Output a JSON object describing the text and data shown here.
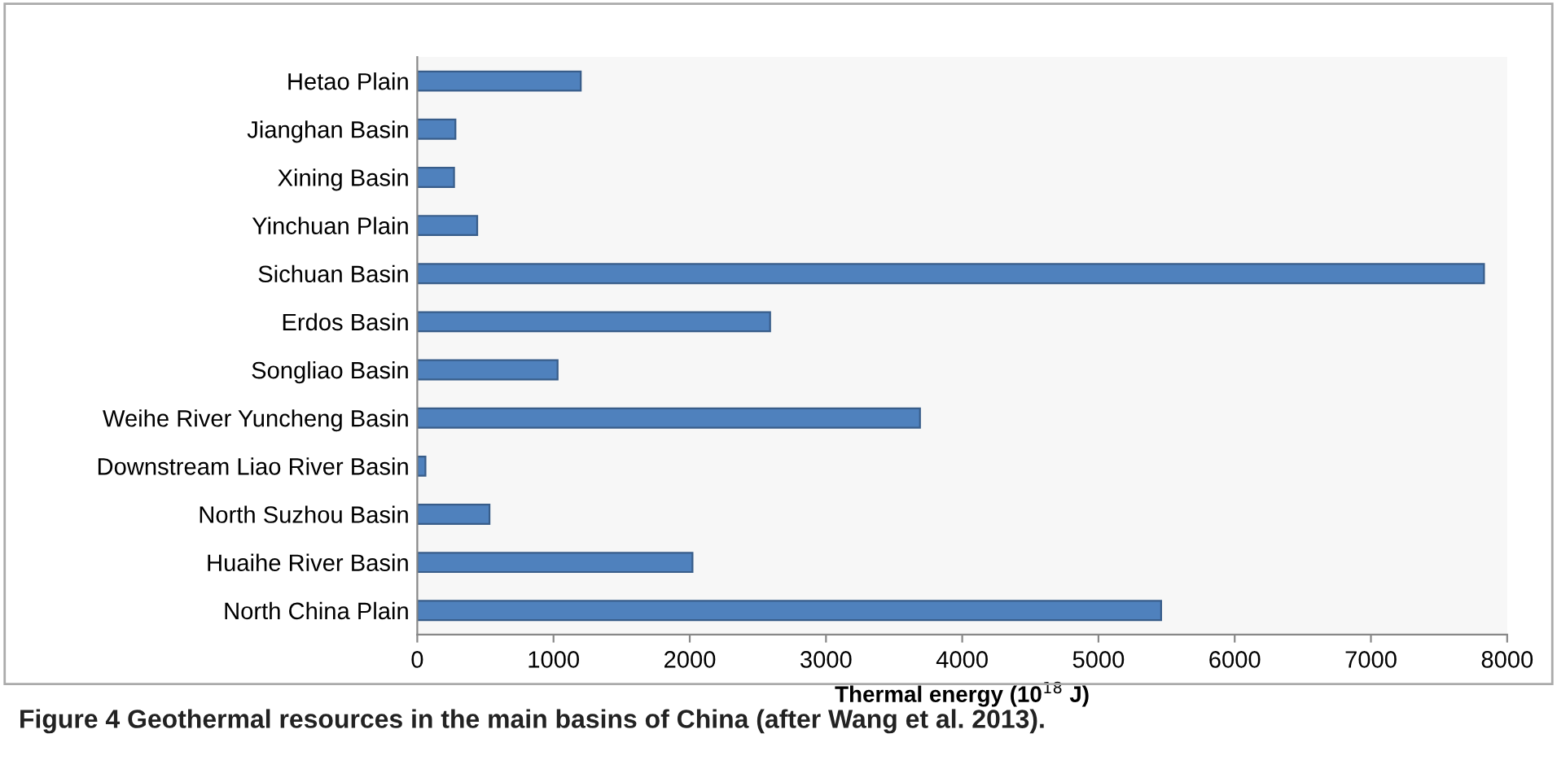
{
  "chart_data": {
    "type": "bar",
    "orientation": "horizontal",
    "categories": [
      "Hetao Plain",
      "Jianghan Basin",
      "Xining Basin",
      "Yinchuan Plain",
      "Sichuan Basin",
      "Erdos Basin",
      "Songliao Basin",
      "Weihe River Yuncheng Basin",
      "Downstream Liao River Basin",
      "North Suzhou Basin",
      "Huaihe River Basin",
      "North China Plain"
    ],
    "values": [
      1200,
      280,
      270,
      440,
      7830,
      2590,
      1030,
      3690,
      60,
      530,
      2020,
      5460
    ],
    "color": "#4f81bd",
    "xlim": [
      0,
      8000
    ],
    "xticks": [
      0,
      1000,
      2000,
      3000,
      4000,
      5000,
      6000,
      7000,
      8000
    ],
    "xlabel": "Thermal energy (10$^{18}$ J)",
    "grid": false,
    "annotations": [
      "Figure 4 Geothermal resources in the main basins of China (after Wang et al. 2013)."
    ]
  }
}
